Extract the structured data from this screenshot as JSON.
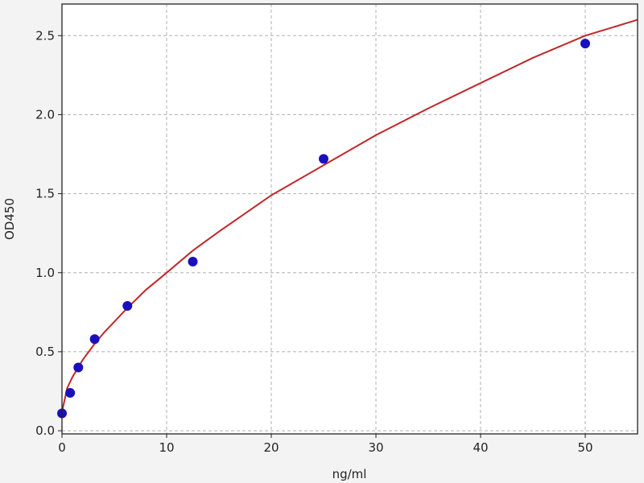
{
  "chart_data": {
    "type": "scatter",
    "title": "",
    "xlabel": "ng/ml",
    "ylabel": "OD450",
    "xlim": [
      0,
      55
    ],
    "ylim": [
      -0.02,
      2.7
    ],
    "xticks": [
      0,
      10,
      20,
      30,
      40,
      50
    ],
    "yticks": [
      0.0,
      0.5,
      1.0,
      1.5,
      2.0,
      2.5
    ],
    "xtick_labels": [
      "0",
      "10",
      "20",
      "30",
      "40",
      "50"
    ],
    "ytick_labels": [
      "0.0",
      "0.5",
      "1.0",
      "1.5",
      "2.0",
      "2.5"
    ],
    "grid": true,
    "series": [
      {
        "kind": "points",
        "x": [
          0,
          0.78,
          1.56,
          3.125,
          6.25,
          12.5,
          25,
          50
        ],
        "y": [
          0.11,
          0.24,
          0.4,
          0.58,
          0.79,
          1.07,
          1.72,
          2.45
        ],
        "color": "#1a0fbf"
      },
      {
        "kind": "fit-curve",
        "x": [
          0,
          0.5,
          1,
          2,
          3,
          4,
          6,
          8,
          10,
          12.5,
          15,
          20,
          25,
          30,
          35,
          40,
          45,
          50,
          55
        ],
        "y": [
          0.12,
          0.27,
          0.34,
          0.45,
          0.54,
          0.62,
          0.76,
          0.89,
          1.0,
          1.14,
          1.26,
          1.49,
          1.68,
          1.87,
          2.04,
          2.2,
          2.36,
          2.5,
          2.6
        ],
        "color": "#c0282a"
      }
    ]
  }
}
